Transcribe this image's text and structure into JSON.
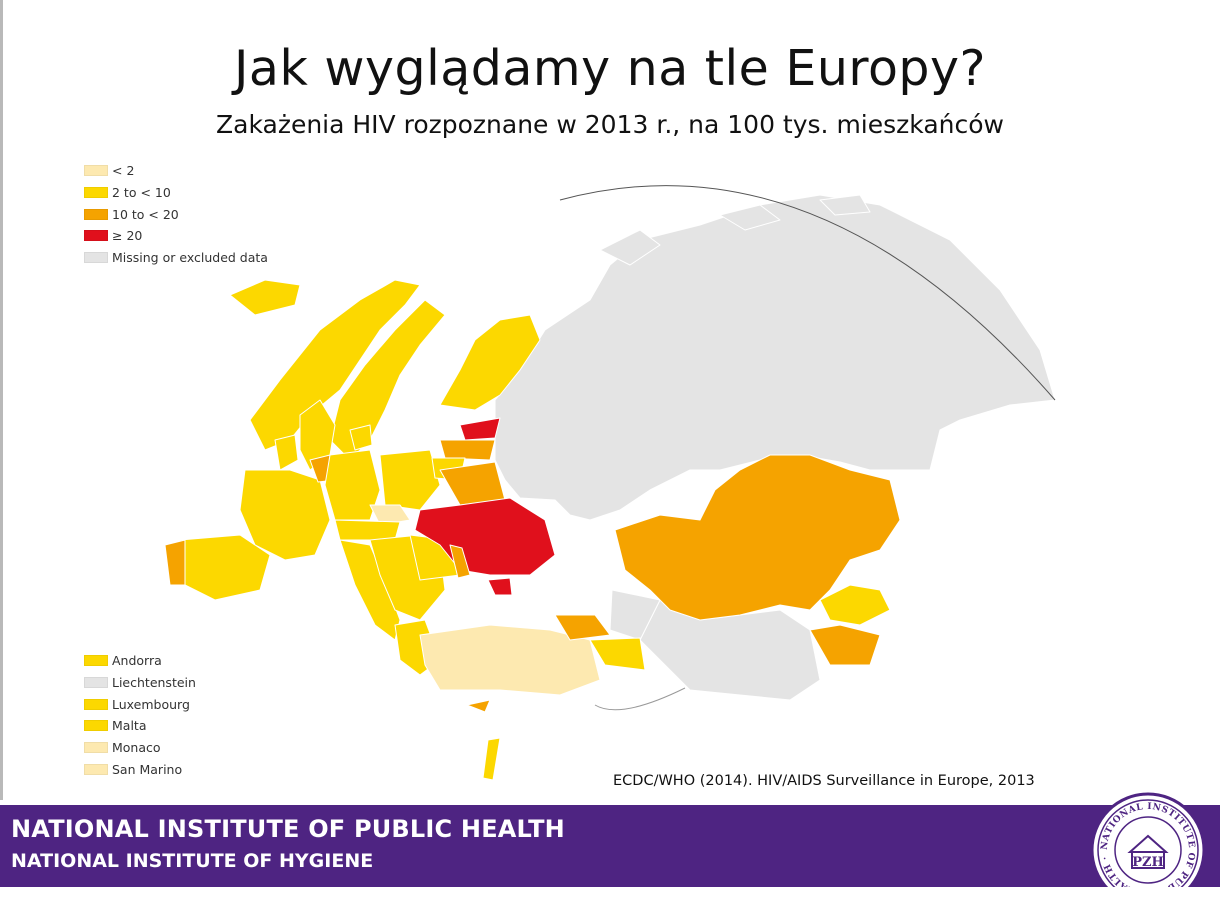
{
  "slide": {
    "title": "Jak wyglądamy na tle Europy?",
    "subtitle": "Zakażenia HIV rozpoznane w 2013 r., na 100 tys. mieszkańców"
  },
  "legend": {
    "categories": [
      {
        "label": "< 2",
        "color": "#fde9b0"
      },
      {
        "label": "2 to < 10",
        "color": "#fcd800"
      },
      {
        "label": "10 to < 20",
        "color": "#f5a300"
      },
      {
        "label": "≥ 20",
        "color": "#e0101c"
      },
      {
        "label": "Missing or excluded data",
        "color": "#e4e4e4"
      }
    ],
    "small_countries": [
      {
        "label": "Andorra",
        "color": "#fcd800"
      },
      {
        "label": "Liechtenstein",
        "color": "#e4e4e4"
      },
      {
        "label": "Luxembourg",
        "color": "#fcd800"
      },
      {
        "label": "Malta",
        "color": "#fcd800"
      },
      {
        "label": "Monaco",
        "color": "#fde9b0"
      },
      {
        "label": "San Marino",
        "color": "#fde9b0"
      }
    ]
  },
  "source": "ECDC/WHO (2014). HIV/AIDS Surveillance in Europe, 2013",
  "footer": {
    "line1": "NATIONAL INSTITUTE OF PUBLIC HEALTH",
    "line2": "NATIONAL INSTITUTE OF HYGIENE",
    "seal_text": "PZH",
    "seal_ring": "NATIONAL INSTITUTE OF PUBLIC HEALTH · PUBLICAE",
    "band_color": "#4e2482"
  }
}
